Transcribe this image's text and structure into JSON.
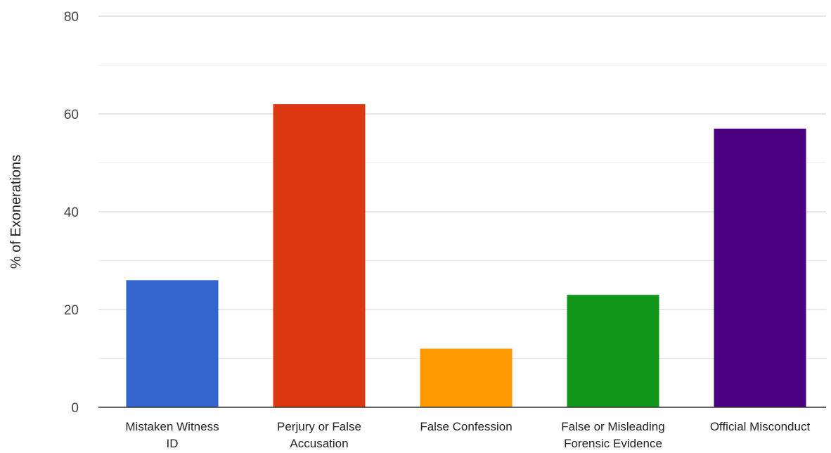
{
  "chart_data": {
    "type": "bar",
    "title": "",
    "xlabel": "",
    "ylabel": "% of Exonerations",
    "ylim": [
      0,
      80
    ],
    "yticks": [
      0,
      20,
      40,
      60,
      80
    ],
    "minor_gridlines": true,
    "grid": true,
    "legend": "none",
    "categories": [
      [
        "Mistaken Witness",
        "ID"
      ],
      [
        "Perjury or False",
        "Accusation"
      ],
      [
        "False Confession"
      ],
      [
        "False or Misleading",
        "Forensic Evidence"
      ],
      [
        "Official Misconduct"
      ]
    ],
    "values": [
      26,
      62,
      12,
      23,
      57
    ],
    "colors": [
      "#3366cc",
      "#dc3912",
      "#ff9900",
      "#109618",
      "#4b0082"
    ]
  }
}
